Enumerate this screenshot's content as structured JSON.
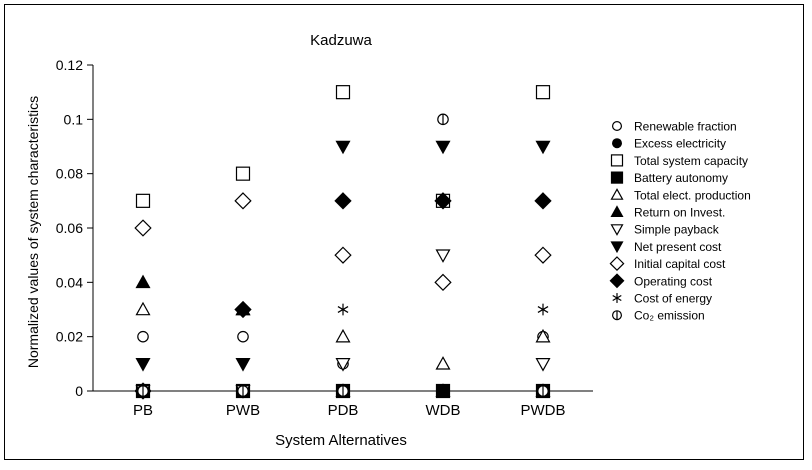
{
  "chart_data": {
    "type": "scatter",
    "title": "Kadzuwa",
    "xlabel": "System Alternatives",
    "ylabel": "Normalized values of system characteristics",
    "categories": [
      "PB",
      "PWB",
      "PDB",
      "WDB",
      "PWDB"
    ],
    "ylim": [
      0,
      0.12
    ],
    "yticks": [
      "0",
      "0.02",
      "0.04",
      "0.06",
      "0.08",
      "0.1",
      "0.12"
    ],
    "grid": false,
    "legend_position": "right",
    "series": [
      {
        "name": "Renewable fraction",
        "marker": "circle-open",
        "values": [
          0.02,
          0.02,
          0.01,
          0.07,
          0.02
        ]
      },
      {
        "name": "Excess electricity",
        "marker": "circle-filled",
        "values": [
          0.0,
          0.03,
          0.0,
          0.07,
          0.0
        ]
      },
      {
        "name": "Total system capacity",
        "marker": "square-open",
        "values": [
          0.07,
          0.08,
          0.11,
          0.07,
          0.11
        ]
      },
      {
        "name": "Battery autonomy",
        "marker": "square-filled",
        "values": [
          0.0,
          0.0,
          0.0,
          0.0,
          0.0
        ]
      },
      {
        "name": "Total elect. production",
        "marker": "triangle-up-open",
        "values": [
          0.03,
          0.03,
          0.02,
          0.01,
          0.02
        ]
      },
      {
        "name": "Return on Invest.",
        "marker": "triangle-up-filled",
        "values": [
          0.04,
          0.03,
          0.0,
          0.0,
          0.0
        ]
      },
      {
        "name": "Simple payback",
        "marker": "triangle-down-open",
        "values": [
          0.0,
          0.0,
          0.01,
          0.05,
          0.01
        ]
      },
      {
        "name": "Net present cost",
        "marker": "triangle-down-filled",
        "values": [
          0.01,
          0.01,
          0.09,
          0.09,
          0.09
        ]
      },
      {
        "name": "Initial capital cost",
        "marker": "diamond-open",
        "values": [
          0.06,
          0.07,
          0.05,
          0.04,
          0.05
        ]
      },
      {
        "name": "Operating cost",
        "marker": "diamond-filled",
        "values": [
          0.0,
          0.03,
          0.07,
          0.07,
          0.07
        ]
      },
      {
        "name": "Cost of energy",
        "marker": "asterisk",
        "values": [
          0.0,
          0.0,
          0.03,
          0.07,
          0.03
        ]
      },
      {
        "name": "Co₂ emission",
        "marker": "circle-bar",
        "values": [
          0.0,
          0.0,
          0.0,
          0.1,
          0.0
        ]
      }
    ]
  }
}
